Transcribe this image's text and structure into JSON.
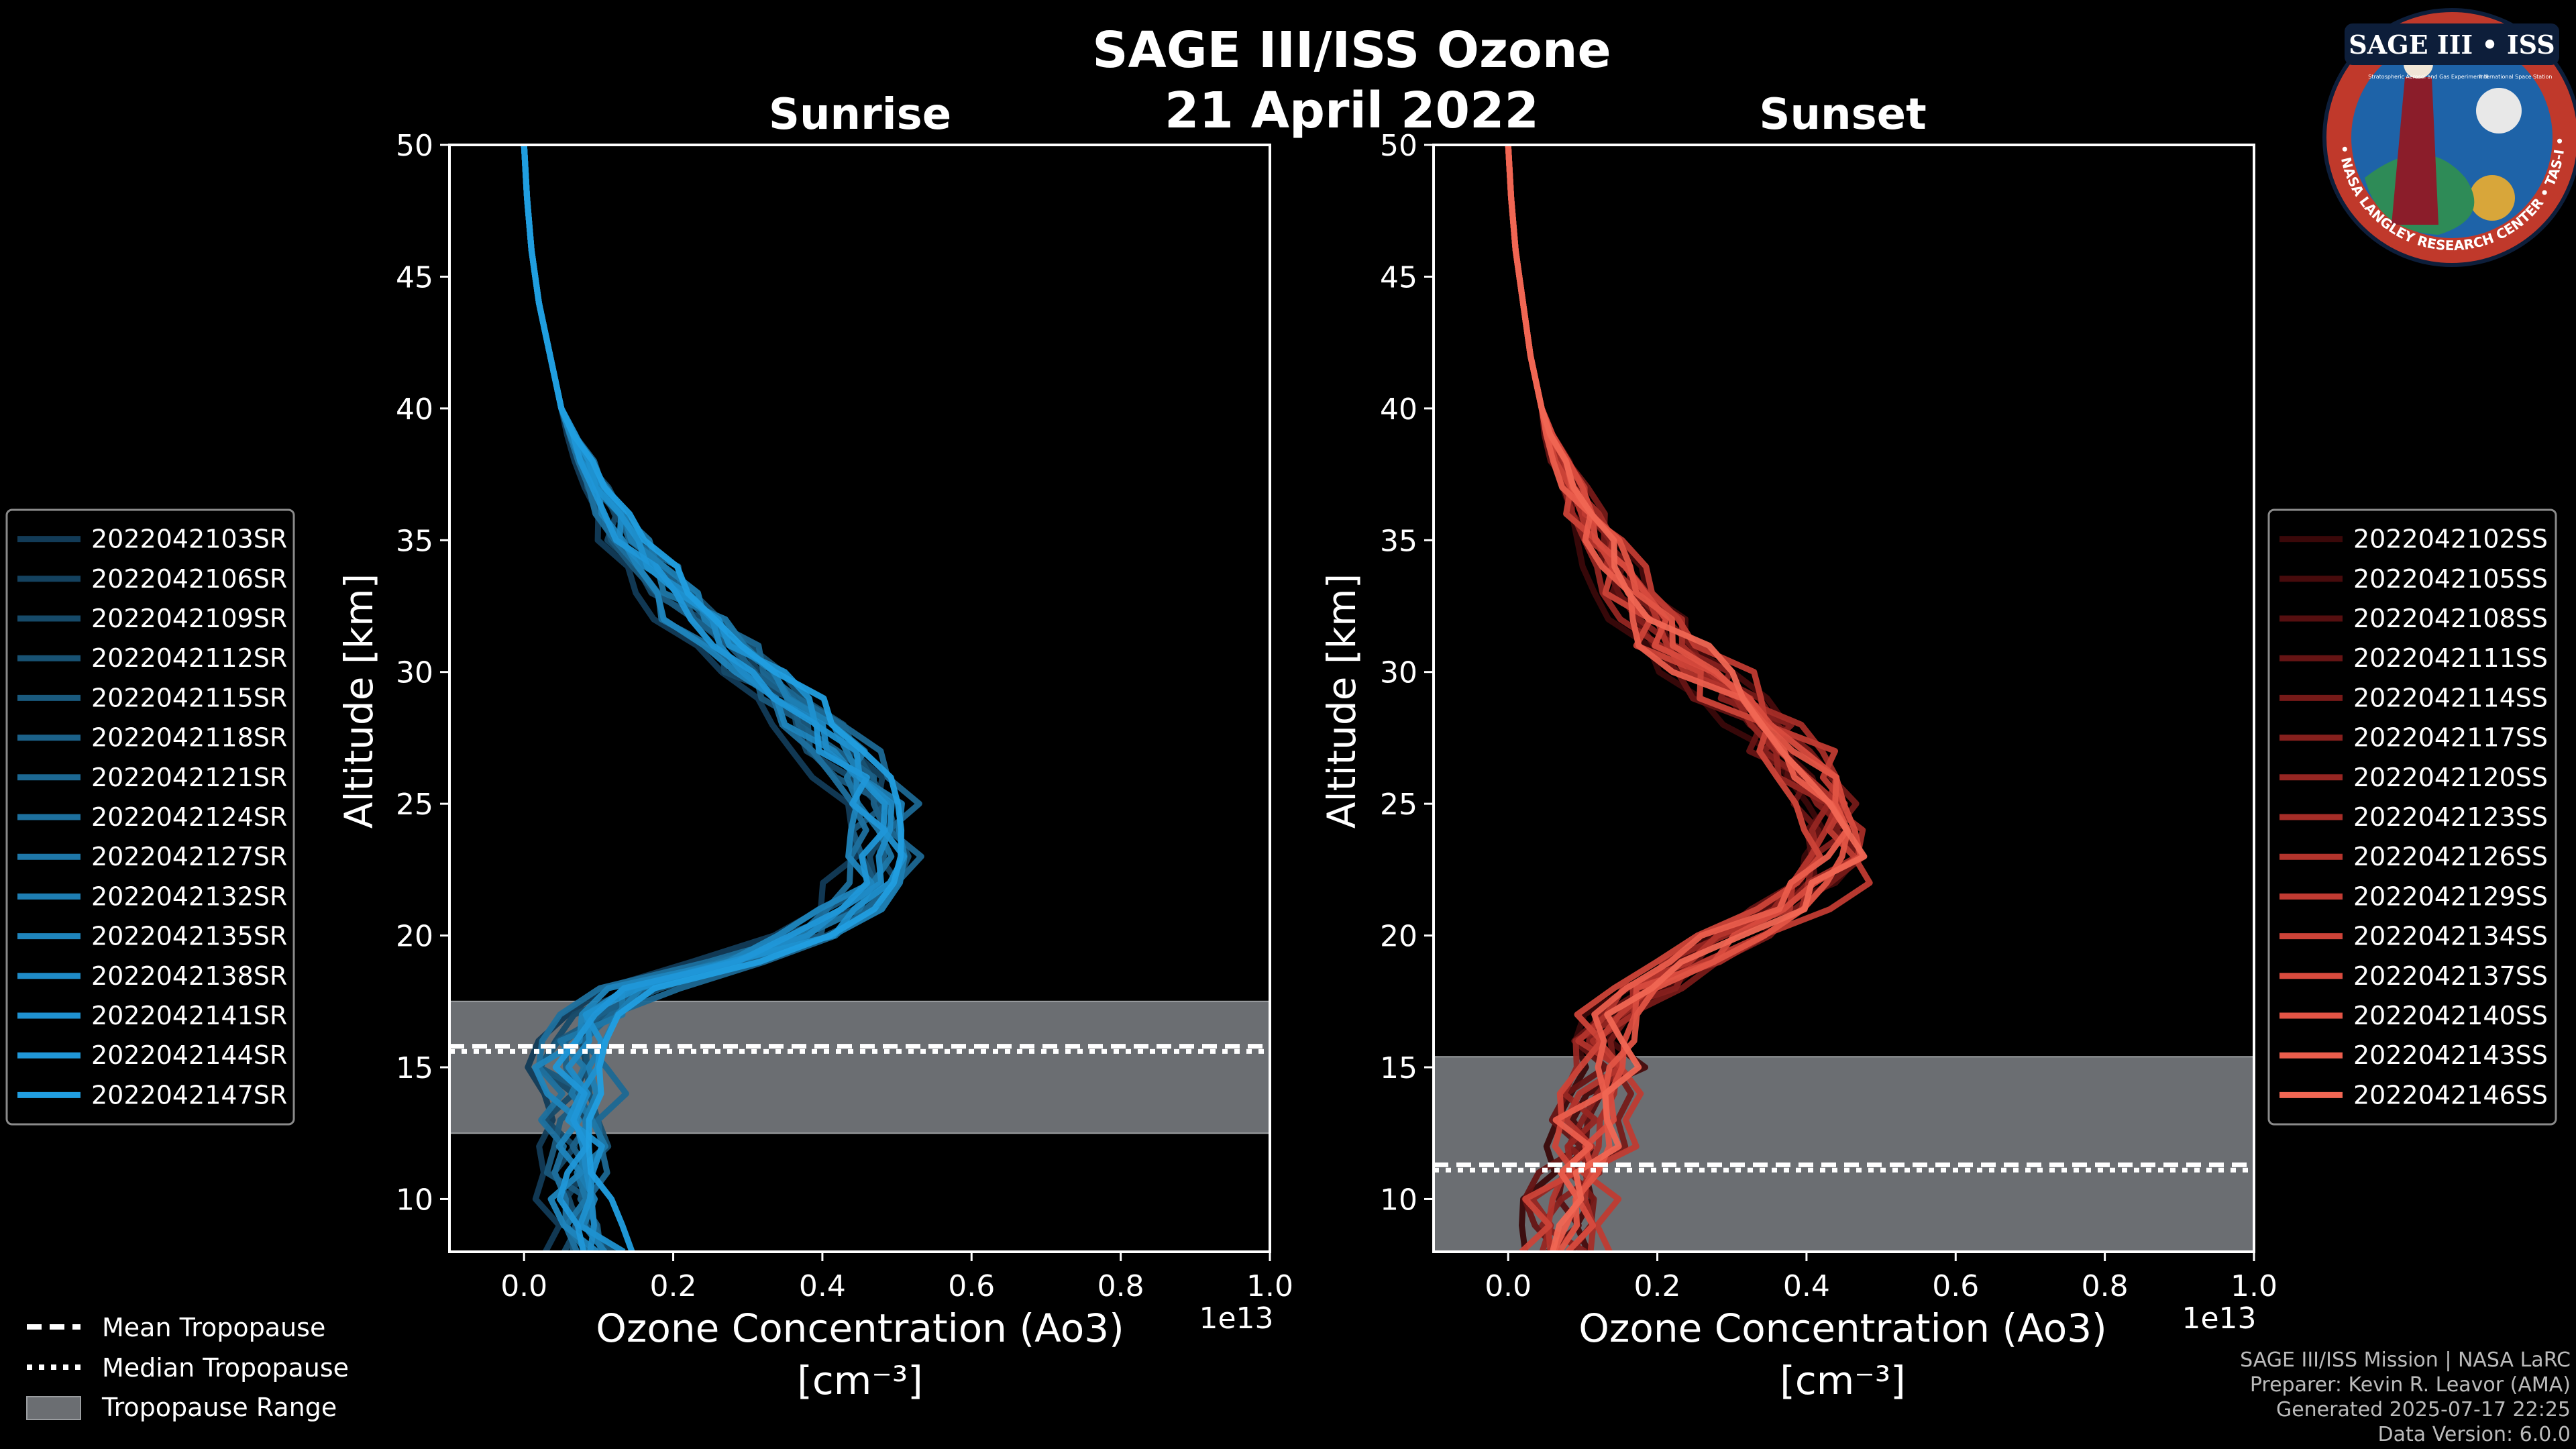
{
  "title": "SAGE III/ISS Ozone",
  "subtitle": "21 April 2022",
  "logo": {
    "label": "SAGE III • ISS",
    "ring_text": "BALL • NASA LANGLEY RESEARCH CENTER • TAS-I • ESA",
    "inner_text": "Stratospheric Aerosol and Gas Experiment III",
    "station_text": "International Space Station",
    "colors": {
      "ring": "#c0392b",
      "inner": "#1e63a8",
      "gold": "#d8a63a"
    }
  },
  "footer": {
    "line1": "SAGE III/ISS Mission | NASA LaRC",
    "line2": "Preparer: Kevin R. Leavor (AMA)",
    "line3": "Generated 2025-07-17 22:25",
    "line4": "Data Version: 6.0.0"
  },
  "common_legend": [
    {
      "label": "Mean Tropopause",
      "style": "dashed"
    },
    {
      "label": "Median Tropopause",
      "style": "dotted"
    },
    {
      "label": "Tropopause Range",
      "style": "patch"
    }
  ],
  "chart_data": [
    {
      "type": "line",
      "title": "Sunrise",
      "xlabel": "Ozone Concentration (Ao3)",
      "xlabel_units": "[cm⁻³]",
      "xscale_label": "1e13",
      "ylabel": "Altitude [km]",
      "xlim": [
        -0.1,
        1.0
      ],
      "ylim": [
        8,
        50
      ],
      "xticks": [
        "0.0",
        "0.2",
        "0.4",
        "0.6",
        "0.8",
        "1.0"
      ],
      "yticks": [
        "10",
        "15",
        "20",
        "25",
        "30",
        "35",
        "40",
        "45",
        "50"
      ],
      "tropopause": {
        "mean": 15.8,
        "median": 15.6,
        "range": [
          12.5,
          17.5
        ]
      },
      "base_profile": {
        "altitude": [
          8,
          9,
          10,
          11,
          12,
          13,
          14,
          15,
          16,
          17,
          18,
          19,
          20,
          21,
          22,
          23,
          24,
          25,
          26,
          27,
          28,
          29,
          30,
          31,
          32,
          33,
          34,
          35,
          36,
          37,
          38,
          39,
          40,
          42,
          44,
          46,
          48,
          50
        ],
        "ozone": [
          0.09,
          0.08,
          0.07,
          0.07,
          0.08,
          0.07,
          0.08,
          0.06,
          0.07,
          0.09,
          0.15,
          0.28,
          0.38,
          0.44,
          0.47,
          0.48,
          0.48,
          0.47,
          0.45,
          0.42,
          0.39,
          0.35,
          0.31,
          0.27,
          0.23,
          0.2,
          0.17,
          0.14,
          0.12,
          0.1,
          0.08,
          0.065,
          0.05,
          0.035,
          0.02,
          0.01,
          0.004,
          0.0
        ]
      },
      "series": [
        {
          "name": "2022042103SR",
          "color": "#123b57",
          "offset": -0.05,
          "noise": 0.02,
          "seed": 3
        },
        {
          "name": "2022042106SR",
          "color": "#14425f",
          "offset": 0.01,
          "noise": 0.025,
          "seed": 6
        },
        {
          "name": "2022042109SR",
          "color": "#164a69",
          "offset": -0.02,
          "noise": 0.03,
          "seed": 9
        },
        {
          "name": "2022042112SR",
          "color": "#185273",
          "offset": 0.02,
          "noise": 0.02,
          "seed": 12
        },
        {
          "name": "2022042115SR",
          "color": "#1a5a7e",
          "offset": -0.01,
          "noise": 0.03,
          "seed": 15
        },
        {
          "name": "2022042118SR",
          "color": "#1b6189",
          "offset": 0.0,
          "noise": 0.025,
          "seed": 18
        },
        {
          "name": "2022042121SR",
          "color": "#1c6893",
          "offset": 0.03,
          "noise": 0.03,
          "seed": 21
        },
        {
          "name": "2022042124SR",
          "color": "#1d709e",
          "offset": -0.03,
          "noise": 0.02,
          "seed": 24
        },
        {
          "name": "2022042127SR",
          "color": "#1e77a8",
          "offset": 0.01,
          "noise": 0.035,
          "seed": 27
        },
        {
          "name": "2022042132SR",
          "color": "#1e7eb3",
          "offset": 0.02,
          "noise": 0.02,
          "seed": 32
        },
        {
          "name": "2022042135SR",
          "color": "#1f85bd",
          "offset": -0.02,
          "noise": 0.03,
          "seed": 35
        },
        {
          "name": "2022042138SR",
          "color": "#1f8bc7",
          "offset": 0.0,
          "noise": 0.025,
          "seed": 38
        },
        {
          "name": "2022042141SR",
          "color": "#1f91d0",
          "offset": 0.015,
          "noise": 0.03,
          "seed": 41
        },
        {
          "name": "2022042144SR",
          "color": "#2097d8",
          "offset": -0.01,
          "noise": 0.02,
          "seed": 44
        },
        {
          "name": "2022042147SR",
          "color": "#219ee0",
          "offset": 0.03,
          "noise": 0.025,
          "seed": 47
        }
      ]
    },
    {
      "type": "line",
      "title": "Sunset",
      "xlabel": "Ozone Concentration (Ao3)",
      "xlabel_units": "[cm⁻³]",
      "xscale_label": "1e13",
      "ylabel": "Altitude [km]",
      "xlim": [
        -0.1,
        1.0
      ],
      "ylim": [
        8,
        50
      ],
      "xticks": [
        "0.0",
        "0.2",
        "0.4",
        "0.6",
        "0.8",
        "1.0"
      ],
      "yticks": [
        "10",
        "15",
        "20",
        "25",
        "30",
        "35",
        "40",
        "45",
        "50"
      ],
      "tropopause": {
        "mean": 11.3,
        "median": 11.1,
        "range": [
          8,
          15.4
        ]
      },
      "base_profile": {
        "altitude": [
          8,
          9,
          10,
          11,
          12,
          13,
          14,
          15,
          16,
          17,
          18,
          19,
          20,
          21,
          22,
          23,
          24,
          25,
          26,
          27,
          28,
          29,
          30,
          31,
          32,
          33,
          34,
          35,
          36,
          37,
          38,
          39,
          40,
          42,
          44,
          46,
          48,
          50
        ],
        "ozone": [
          0.06,
          0.07,
          0.07,
          0.08,
          0.1,
          0.1,
          0.11,
          0.13,
          0.12,
          0.14,
          0.18,
          0.24,
          0.3,
          0.36,
          0.41,
          0.43,
          0.43,
          0.42,
          0.4,
          0.37,
          0.34,
          0.3,
          0.26,
          0.22,
          0.19,
          0.16,
          0.14,
          0.12,
          0.1,
          0.085,
          0.07,
          0.055,
          0.045,
          0.03,
          0.02,
          0.01,
          0.004,
          0.0
        ]
      },
      "series": [
        {
          "name": "2022042102SS",
          "color": "#3a0809",
          "offset": -0.03,
          "noise": 0.03,
          "seed": 2
        },
        {
          "name": "2022042105SS",
          "color": "#470b0c",
          "offset": 0.02,
          "noise": 0.035,
          "seed": 5
        },
        {
          "name": "2022042108SS",
          "color": "#560f10",
          "offset": 0.0,
          "noise": 0.03,
          "seed": 8
        },
        {
          "name": "2022042111SS",
          "color": "#661414",
          "offset": -0.02,
          "noise": 0.035,
          "seed": 11
        },
        {
          "name": "2022042114SS",
          "color": "#761a18",
          "offset": 0.03,
          "noise": 0.03,
          "seed": 14
        },
        {
          "name": "2022042117SS",
          "color": "#86201d",
          "offset": 0.01,
          "noise": 0.04,
          "seed": 17
        },
        {
          "name": "2022042120SS",
          "color": "#962622",
          "offset": -0.01,
          "noise": 0.03,
          "seed": 20
        },
        {
          "name": "2022042123SS",
          "color": "#a52d27",
          "offset": 0.02,
          "noise": 0.035,
          "seed": 23
        },
        {
          "name": "2022042126SS",
          "color": "#b3342c",
          "offset": 0.0,
          "noise": 0.03,
          "seed": 26
        },
        {
          "name": "2022042129SS",
          "color": "#c03b32",
          "offset": 0.04,
          "noise": 0.04,
          "seed": 29
        },
        {
          "name": "2022042134SS",
          "color": "#cc4338",
          "offset": -0.02,
          "noise": 0.03,
          "seed": 34
        },
        {
          "name": "2022042137SS",
          "color": "#d84b3e",
          "offset": 0.01,
          "noise": 0.035,
          "seed": 37
        },
        {
          "name": "2022042140SS",
          "color": "#e25445",
          "offset": 0.03,
          "noise": 0.03,
          "seed": 40
        },
        {
          "name": "2022042143SS",
          "color": "#ea5d4c",
          "offset": -0.01,
          "noise": 0.035,
          "seed": 43
        },
        {
          "name": "2022042146SS",
          "color": "#f06653",
          "offset": 0.02,
          "noise": 0.03,
          "seed": 46
        }
      ]
    }
  ]
}
